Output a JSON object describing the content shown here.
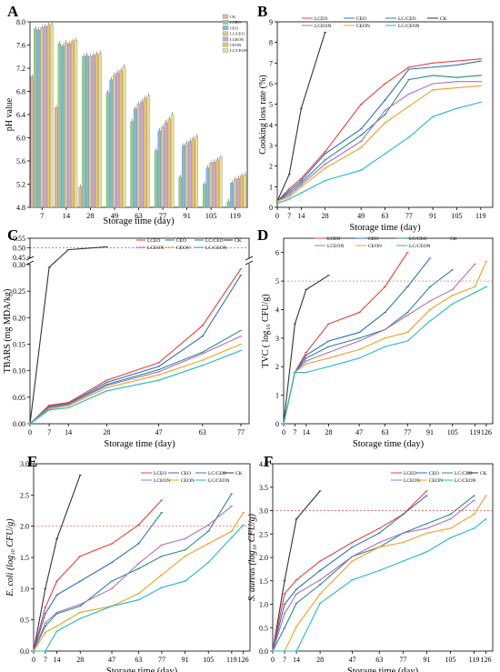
{
  "panels": {
    "A": {
      "letter": "A"
    },
    "B": {
      "letter": "B"
    },
    "C": {
      "letter": "C"
    },
    "D": {
      "letter": "D"
    },
    "E": {
      "letter": "E"
    },
    "F": {
      "letter": "F"
    }
  },
  "colors": {
    "LCEO": "#e8403a",
    "CEO": "#2f6fc0",
    "LCCEO": "#2a8a86",
    "CK": "#333333",
    "LCEON": "#b06cc8",
    "CEON": "#f0a020",
    "LCCEON": "#20b8cc"
  },
  "chart_data": [
    {
      "panel": "A",
      "type": "bar",
      "xlabel": "Storage time (day)",
      "ylabel": "pH value",
      "categories": [
        "7",
        "14",
        "28",
        "49",
        "63",
        "77",
        "91",
        "105",
        "119"
      ],
      "ylim": [
        4.8,
        8.0
      ],
      "yticks": [
        "4.8",
        "5.2",
        "5.6",
        "6.0",
        "6.4",
        "6.8",
        "7.2",
        "7.6",
        "8.0"
      ],
      "series": [
        {
          "name": "CK",
          "color": "#f4a8a0",
          "values": [
            7.05,
            6.52,
            5.15,
            null,
            null,
            null,
            null,
            null,
            null
          ]
        },
        {
          "name": "LCEO",
          "color": "#8fd08a",
          "values": [
            7.88,
            7.62,
            7.4,
            6.78,
            6.28,
            5.78,
            5.32,
            5.2,
            4.9
          ]
        },
        {
          "name": "CEO",
          "color": "#7fb8e8",
          "values": [
            7.86,
            7.58,
            7.42,
            7.0,
            6.5,
            6.12,
            5.86,
            5.48,
            5.22
          ]
        },
        {
          "name": "LC/CEO",
          "color": "#d8c890",
          "values": [
            7.9,
            7.64,
            7.4,
            7.08,
            6.58,
            6.18,
            5.9,
            5.56,
            5.28
          ]
        },
        {
          "name": "LCEON",
          "color": "#c8a8e0",
          "values": [
            7.92,
            7.62,
            7.42,
            7.12,
            6.62,
            6.26,
            5.94,
            5.58,
            5.3
          ]
        },
        {
          "name": "CEON",
          "color": "#f0c060",
          "values": [
            7.94,
            7.66,
            7.44,
            7.16,
            6.68,
            6.32,
            5.98,
            5.62,
            5.34
          ]
        },
        {
          "name": "LC/CEON",
          "color": "#e8e090",
          "values": [
            7.96,
            7.68,
            7.46,
            7.22,
            6.72,
            6.4,
            6.02,
            5.66,
            5.36
          ]
        }
      ]
    },
    {
      "panel": "B",
      "type": "line",
      "xlabel": "Storage time (day)",
      "ylabel": "Cooking loss rate (%)",
      "xticks": [
        0,
        7,
        14,
        28,
        49,
        63,
        77,
        91,
        105,
        119
      ],
      "xlim": [
        0,
        126
      ],
      "ylim": [
        0,
        9
      ],
      "yticks": [
        0,
        1,
        2,
        3,
        4,
        5,
        6,
        7,
        8,
        9
      ],
      "legend": [
        "LCEO",
        "CEO",
        "LC/CEO",
        "CK",
        "LCEON",
        "CEON",
        "LC/CEON"
      ],
      "series": [
        {
          "name": "CK",
          "x": [
            0,
            7,
            14,
            28
          ],
          "y": [
            0.3,
            1.6,
            4.8,
            8.5
          ]
        },
        {
          "name": "LCEO",
          "x": [
            0,
            7,
            14,
            28,
            49,
            63,
            77,
            91,
            105,
            119
          ],
          "y": [
            0.3,
            0.9,
            1.4,
            2.7,
            5.0,
            6.0,
            6.8,
            7.0,
            7.1,
            7.2
          ]
        },
        {
          "name": "CEO",
          "x": [
            0,
            7,
            14,
            28,
            49,
            63,
            77,
            91,
            105,
            119
          ],
          "y": [
            0.3,
            0.8,
            1.3,
            2.6,
            3.8,
            5.2,
            6.7,
            6.8,
            6.9,
            7.1
          ]
        },
        {
          "name": "LC/CEO",
          "x": [
            0,
            7,
            14,
            28,
            49,
            63,
            77,
            91,
            105,
            119
          ],
          "y": [
            0.3,
            0.7,
            1.2,
            2.3,
            3.5,
            4.5,
            6.2,
            6.4,
            6.3,
            6.4
          ]
        },
        {
          "name": "LCEON",
          "x": [
            0,
            7,
            14,
            28,
            49,
            63,
            77,
            91,
            105,
            119
          ],
          "y": [
            0.3,
            0.6,
            1.1,
            2.1,
            3.2,
            4.7,
            5.5,
            6.0,
            6.1,
            6.1
          ]
        },
        {
          "name": "CEON",
          "x": [
            0,
            7,
            14,
            28,
            49,
            63,
            77,
            91,
            105,
            119
          ],
          "y": [
            0.3,
            0.5,
            1.0,
            1.9,
            2.9,
            4.1,
            4.9,
            5.7,
            5.8,
            5.9
          ]
        },
        {
          "name": "LC/CEON",
          "x": [
            0,
            7,
            14,
            28,
            49,
            63,
            77,
            91,
            105,
            119
          ],
          "y": [
            0.2,
            0.4,
            0.7,
            1.3,
            1.8,
            2.6,
            3.4,
            4.4,
            4.8,
            5.1
          ]
        }
      ]
    },
    {
      "panel": "C",
      "type": "line",
      "xlabel": "Storage time (day)",
      "ylabel": "TBARS (mg MDA/kg)",
      "xticks": [
        0,
        7,
        14,
        28,
        47,
        63,
        77
      ],
      "xlim": [
        0,
        80
      ],
      "ylim_lower": [
        0,
        0.3
      ],
      "ylim_upper": [
        0.45,
        0.55
      ],
      "yticks_lower": [
        "0.00",
        "0.05",
        "0.10",
        "0.15",
        "0.20",
        "0.25",
        "0.30"
      ],
      "yticks_upper": [
        "0.45",
        "0.50",
        "0.55"
      ],
      "threshold": 0.5,
      "legend": [
        "LCEO",
        "CEO",
        "LC/CEO",
        "CK",
        "LCEON",
        "CEON",
        "LC/CEON"
      ],
      "series": [
        {
          "name": "CK",
          "x": [
            0,
            7,
            14,
            28
          ],
          "y": [
            0.0,
            0.295,
            0.49,
            0.505
          ]
        },
        {
          "name": "LCEO",
          "x": [
            0,
            7,
            14,
            28,
            47,
            63,
            77
          ],
          "y": [
            0.0,
            0.035,
            0.04,
            0.082,
            0.115,
            0.185,
            0.292
          ]
        },
        {
          "name": "CEO",
          "x": [
            0,
            7,
            14,
            28,
            47,
            63,
            77
          ],
          "y": [
            0.0,
            0.033,
            0.038,
            0.078,
            0.108,
            0.165,
            0.28
          ]
        },
        {
          "name": "LC/CEO",
          "x": [
            0,
            7,
            14,
            28,
            47,
            63,
            77
          ],
          "y": [
            0.0,
            0.032,
            0.037,
            0.074,
            0.102,
            0.135,
            0.176
          ]
        },
        {
          "name": "LCEON",
          "x": [
            0,
            7,
            14,
            28,
            47,
            63,
            77
          ],
          "y": [
            0.0,
            0.03,
            0.036,
            0.072,
            0.098,
            0.132,
            0.165
          ]
        },
        {
          "name": "CEON",
          "x": [
            0,
            7,
            14,
            28,
            47,
            63,
            77
          ],
          "y": [
            0.0,
            0.028,
            0.034,
            0.068,
            0.092,
            0.12,
            0.15
          ]
        },
        {
          "name": "LC/CEON",
          "x": [
            0,
            7,
            14,
            28,
            47,
            63,
            77
          ],
          "y": [
            0.0,
            0.026,
            0.03,
            0.062,
            0.082,
            0.11,
            0.138
          ]
        }
      ]
    },
    {
      "panel": "D",
      "type": "line",
      "xlabel": "Storage time (day)",
      "ylabel": "TVC ( log₁₀ CFU/g)",
      "xticks": [
        0,
        7,
        14,
        28,
        47,
        63,
        77,
        91,
        105,
        119,
        126
      ],
      "xlim": [
        0,
        130
      ],
      "ylim": [
        0,
        6.5
      ],
      "yticks": [
        0,
        1,
        2,
        3,
        4,
        5,
        6
      ],
      "threshold": 5.0,
      "legend": [
        "LCEO",
        "CEO",
        "LC/CEO",
        "CK",
        "LCEON",
        "CEON",
        "LC/CEON"
      ],
      "series": [
        {
          "name": "CK",
          "x": [
            0,
            7,
            14,
            28
          ],
          "y": [
            0.0,
            3.5,
            4.7,
            5.2
          ]
        },
        {
          "name": "LCEO",
          "x": [
            0,
            7,
            14,
            28,
            47,
            63,
            77
          ],
          "y": [
            0.0,
            1.8,
            2.5,
            3.5,
            3.9,
            4.8,
            6.0
          ]
        },
        {
          "name": "CEO",
          "x": [
            0,
            7,
            14,
            28,
            47,
            63,
            77,
            91
          ],
          "y": [
            0.0,
            1.8,
            2.4,
            2.9,
            3.2,
            3.9,
            4.8,
            5.8
          ]
        },
        {
          "name": "LC/CEO",
          "x": [
            0,
            7,
            14,
            28,
            47,
            63,
            77,
            91,
            105
          ],
          "y": [
            0.0,
            1.8,
            2.3,
            2.7,
            3.0,
            3.3,
            3.9,
            4.8,
            5.4
          ]
        },
        {
          "name": "LCEON",
          "x": [
            0,
            7,
            14,
            28,
            47,
            63,
            77,
            91,
            105,
            119
          ],
          "y": [
            0.0,
            1.8,
            2.2,
            2.5,
            2.9,
            3.3,
            3.8,
            4.3,
            4.7,
            5.6
          ]
        },
        {
          "name": "CEON",
          "x": [
            0,
            7,
            14,
            28,
            47,
            63,
            77,
            91,
            105,
            119,
            126
          ],
          "y": [
            0.0,
            1.8,
            2.1,
            2.3,
            2.6,
            3.0,
            3.2,
            4.0,
            4.5,
            4.8,
            5.7
          ]
        },
        {
          "name": "LC/CEON",
          "x": [
            0,
            7,
            14,
            28,
            47,
            63,
            77,
            91,
            105,
            119,
            126
          ],
          "y": [
            0.0,
            1.8,
            1.8,
            2.0,
            2.3,
            2.7,
            2.9,
            3.6,
            4.2,
            4.6,
            4.8
          ]
        }
      ]
    },
    {
      "panel": "E",
      "type": "line",
      "xlabel": "Storage time (day)",
      "ylabel": "E. coli (log₁₀ CFU/g)",
      "xticks": [
        0,
        7,
        14,
        28,
        47,
        63,
        77,
        91,
        105,
        119,
        126
      ],
      "xlim": [
        0,
        130
      ],
      "ylim": [
        0,
        3.0
      ],
      "yticks": [
        "0.0",
        "0.5",
        "1.0",
        "1.5",
        "2.0",
        "2.5",
        "3.0"
      ],
      "threshold": 2.0,
      "legend": [
        "LCEO",
        "CEO",
        "LC/CEO",
        "CK",
        "LCEON",
        "CEON",
        "LC/CEON"
      ],
      "series": [
        {
          "name": "CK",
          "x": [
            0,
            7,
            14,
            28
          ],
          "y": [
            0.0,
            1.0,
            1.8,
            2.82
          ]
        },
        {
          "name": "LCEO",
          "x": [
            0,
            7,
            14,
            28,
            47,
            63,
            77
          ],
          "y": [
            0.0,
            0.7,
            1.12,
            1.52,
            1.72,
            2.02,
            2.42
          ]
        },
        {
          "name": "CEO",
          "x": [
            0,
            7,
            14,
            28,
            47,
            63,
            77
          ],
          "y": [
            0.0,
            0.6,
            0.9,
            1.12,
            1.42,
            1.72,
            2.22
          ]
        },
        {
          "name": "LC/CEO",
          "x": [
            0,
            7,
            14,
            28,
            47,
            63,
            77,
            91,
            105,
            119
          ],
          "y": [
            0.0,
            0.4,
            0.6,
            0.72,
            1.12,
            1.32,
            1.52,
            1.62,
            1.92,
            2.52
          ]
        },
        {
          "name": "LCEON",
          "x": [
            0,
            7,
            14,
            28,
            47,
            63,
            77,
            91,
            105,
            119
          ],
          "y": [
            0.0,
            0.45,
            0.62,
            0.75,
            1.0,
            1.4,
            1.7,
            1.8,
            2.02,
            2.32
          ]
        },
        {
          "name": "CEON",
          "x": [
            0,
            7,
            14,
            28,
            47,
            63,
            77,
            91,
            105,
            119,
            126
          ],
          "y": [
            0.0,
            0.3,
            0.4,
            0.62,
            0.72,
            0.92,
            1.22,
            1.52,
            1.72,
            1.92,
            2.22
          ]
        },
        {
          "name": "LC/CEON",
          "x": [
            0,
            7,
            14,
            28,
            47,
            63,
            77,
            91,
            105,
            119,
            126
          ],
          "y": [
            0.0,
            0.0,
            0.32,
            0.52,
            0.72,
            0.82,
            1.02,
            1.12,
            1.42,
            1.82,
            2.02
          ]
        }
      ]
    },
    {
      "panel": "F",
      "type": "line",
      "xlabel": "Storage time (day)",
      "ylabel": "S. aureus (log₁₀ CFU/g)",
      "xticks": [
        0,
        7,
        14,
        28,
        47,
        63,
        77,
        91,
        105,
        119,
        126
      ],
      "xlim": [
        0,
        130
      ],
      "ylim": [
        0,
        4.0
      ],
      "yticks": [
        "0.0",
        "0.5",
        "1.0",
        "1.5",
        "2.0",
        "2.5",
        "3.0",
        "3.5",
        "4.0"
      ],
      "threshold": 3.0,
      "legend": [
        "LCEO",
        "CEO",
        "LC/CEO",
        "CK",
        "LCEON",
        "CEON",
        "LC/CEON"
      ],
      "series": [
        {
          "name": "CK",
          "x": [
            0,
            7,
            14,
            28
          ],
          "y": [
            0.0,
            1.5,
            2.82,
            3.42
          ]
        },
        {
          "name": "LCEO",
          "x": [
            0,
            7,
            14,
            28,
            47,
            63,
            77,
            91
          ],
          "y": [
            0.0,
            1.22,
            1.52,
            1.92,
            2.32,
            2.62,
            2.92,
            3.42
          ]
        },
        {
          "name": "CEO",
          "x": [
            0,
            7,
            14,
            28,
            47,
            63,
            77,
            91
          ],
          "y": [
            0.0,
            1.0,
            1.32,
            1.72,
            2.22,
            2.52,
            2.92,
            3.32
          ]
        },
        {
          "name": "LC/CEO",
          "x": [
            0,
            7,
            14,
            28,
            47,
            63,
            77,
            91,
            105,
            119
          ],
          "y": [
            0.0,
            0.5,
            1.02,
            1.42,
            2.02,
            2.22,
            2.52,
            2.72,
            2.92,
            3.32
          ]
        },
        {
          "name": "LCEON",
          "x": [
            0,
            7,
            14,
            28,
            47,
            63,
            77,
            91,
            105,
            119
          ],
          "y": [
            0.0,
            0.8,
            1.22,
            1.52,
            2.02,
            2.32,
            2.52,
            2.62,
            2.82,
            3.22
          ]
        },
        {
          "name": "CEON",
          "x": [
            0,
            7,
            14,
            28,
            47,
            63,
            77,
            91,
            105,
            119,
            126
          ],
          "y": [
            0.0,
            0.0,
            0.52,
            1.22,
            1.92,
            2.22,
            2.32,
            2.52,
            2.62,
            2.92,
            3.32
          ]
        },
        {
          "name": "LC/CEON",
          "x": [
            0,
            7,
            14,
            28,
            47,
            63,
            77,
            91,
            105,
            119,
            126
          ],
          "y": [
            0.0,
            0.0,
            0.0,
            1.02,
            1.52,
            1.72,
            1.92,
            2.12,
            2.42,
            2.62,
            2.82
          ]
        }
      ]
    }
  ]
}
